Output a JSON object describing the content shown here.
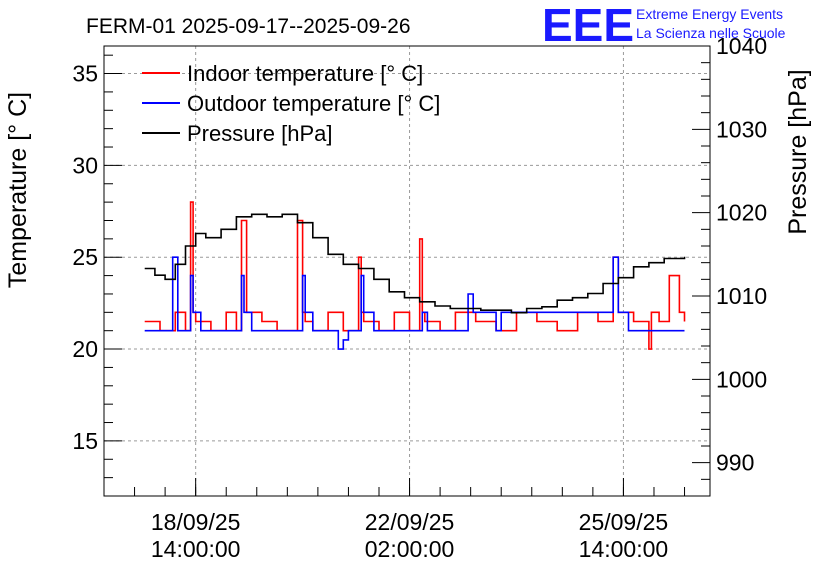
{
  "chart_data": {
    "type": "line",
    "title": "FERM-01 2025-09-17--2025-09-26",
    "ylabel_left": "Temperature [° C]",
    "ylabel_right": "Pressure [hPa]",
    "ylim_left": [
      12,
      36.5
    ],
    "ylim_right": [
      986,
      1040
    ],
    "xlim": [
      "2025-09-17 02:00",
      "2025-09-27 00:00"
    ],
    "y_ticks_left": [
      15,
      20,
      25,
      30,
      35
    ],
    "y_ticks_right": [
      990,
      1000,
      1010,
      1020,
      1030,
      1040
    ],
    "x_ticks": [
      {
        "at": "2025-09-18 14:00",
        "line1": "18/09/25",
        "line2": "14:00:00"
      },
      {
        "at": "2025-09-22 02:00",
        "line1": "22/09/25",
        "line2": "02:00:00"
      },
      {
        "at": "2025-09-25 14:00",
        "line1": "25/09/25",
        "line2": "14:00:00"
      }
    ],
    "grid": true,
    "legend_position": "top-left",
    "legend": [
      {
        "label": "Indoor temperature [° C]",
        "color": "#ff0000"
      },
      {
        "label": "Outdoor temperature [° C]",
        "color": "#0000ff"
      },
      {
        "label": "Pressure [hPa]",
        "color": "#000000"
      }
    ],
    "series": [
      {
        "name": "Indoor temperature [° C]",
        "color": "#ff0000",
        "axis": "left",
        "x": [
          "2025-09-17 18:00",
          "2025-09-18 00:00",
          "2025-09-18 06:00",
          "2025-09-18 10:00",
          "2025-09-18 12:00",
          "2025-09-18 13:00",
          "2025-09-18 14:00",
          "2025-09-18 20:00",
          "2025-09-19 02:00",
          "2025-09-19 06:00",
          "2025-09-19 08:00",
          "2025-09-19 10:00",
          "2025-09-19 16:00",
          "2025-09-19 22:00",
          "2025-09-20 06:00",
          "2025-09-20 08:00",
          "2025-09-20 09:00",
          "2025-09-20 12:00",
          "2025-09-20 18:00",
          "2025-09-21 00:00",
          "2025-09-21 06:00",
          "2025-09-21 07:00",
          "2025-09-21 08:00",
          "2025-09-21 14:00",
          "2025-09-21 20:00",
          "2025-09-22 02:00",
          "2025-09-22 06:00",
          "2025-09-22 07:00",
          "2025-09-22 08:00",
          "2025-09-22 14:00",
          "2025-09-22 20:00",
          "2025-09-23 04:00",
          "2025-09-23 12:00",
          "2025-09-23 20:00",
          "2025-09-24 04:00",
          "2025-09-24 12:00",
          "2025-09-24 20:00",
          "2025-09-25 04:00",
          "2025-09-25 10:00",
          "2025-09-25 12:00",
          "2025-09-25 18:00",
          "2025-09-26 00:00",
          "2025-09-26 01:00",
          "2025-09-26 04:00",
          "2025-09-26 08:00",
          "2025-09-26 12:00",
          "2025-09-26 14:00"
        ],
        "y": [
          21.5,
          21,
          22,
          21,
          28,
          22,
          21.5,
          21,
          22,
          21,
          27,
          22,
          21.5,
          21,
          27,
          22,
          21.5,
          21,
          22,
          21,
          25,
          22,
          21.5,
          21,
          22,
          21,
          26,
          22,
          21.5,
          21,
          22,
          21.5,
          21,
          22,
          21.5,
          21,
          22,
          21.5,
          25,
          22,
          21.5,
          20,
          22,
          21.5,
          24,
          22,
          21.5
        ]
      },
      {
        "name": "Outdoor temperature [° C]",
        "color": "#0000ff",
        "axis": "left",
        "x": [
          "2025-09-17 18:00",
          "2025-09-18 04:00",
          "2025-09-18 05:00",
          "2025-09-18 07:00",
          "2025-09-18 12:00",
          "2025-09-18 13:00",
          "2025-09-18 16:00",
          "2025-09-19 08:00",
          "2025-09-19 09:00",
          "2025-09-19 12:00",
          "2025-09-20 08:00",
          "2025-09-20 09:00",
          "2025-09-20 12:00",
          "2025-09-20 22:00",
          "2025-09-21 00:00",
          "2025-09-21 02:00",
          "2025-09-21 07:00",
          "2025-09-21 08:00",
          "2025-09-21 12:00",
          "2025-09-22 07:00",
          "2025-09-22 09:00",
          "2025-09-23 01:00",
          "2025-09-23 03:00",
          "2025-09-23 12:00",
          "2025-09-23 14:00",
          "2025-09-25 10:00",
          "2025-09-25 12:00",
          "2025-09-25 16:00",
          "2025-09-26 14:00"
        ],
        "y": [
          21,
          21,
          25,
          21,
          24,
          22,
          21,
          24,
          22,
          21,
          24,
          22,
          21,
          20,
          20.5,
          21,
          24,
          22,
          21,
          22,
          21,
          23,
          22,
          21,
          22,
          25,
          22,
          21,
          21
        ]
      },
      {
        "name": "Pressure [hPa]",
        "color": "#000000",
        "axis": "right",
        "x": [
          "2025-09-17 18:00",
          "2025-09-17 22:00",
          "2025-09-18 02:00",
          "2025-09-18 06:00",
          "2025-09-18 10:00",
          "2025-09-18 14:00",
          "2025-09-18 18:00",
          "2025-09-19 00:00",
          "2025-09-19 06:00",
          "2025-09-19 12:00",
          "2025-09-19 18:00",
          "2025-09-20 00:00",
          "2025-09-20 06:00",
          "2025-09-20 12:00",
          "2025-09-20 18:00",
          "2025-09-21 00:00",
          "2025-09-21 06:00",
          "2025-09-21 12:00",
          "2025-09-21 18:00",
          "2025-09-22 00:00",
          "2025-09-22 06:00",
          "2025-09-22 12:00",
          "2025-09-22 18:00",
          "2025-09-23 00:00",
          "2025-09-23 06:00",
          "2025-09-23 12:00",
          "2025-09-23 18:00",
          "2025-09-24 00:00",
          "2025-09-24 06:00",
          "2025-09-24 12:00",
          "2025-09-24 18:00",
          "2025-09-25 00:00",
          "2025-09-25 06:00",
          "2025-09-25 12:00",
          "2025-09-25 18:00",
          "2025-09-26 00:00",
          "2025-09-26 06:00",
          "2025-09-26 14:00"
        ],
        "y": [
          1013.3,
          1012.5,
          1012,
          1013.8,
          1016,
          1017.5,
          1017,
          1018,
          1019.5,
          1019.8,
          1019.5,
          1019.8,
          1018.8,
          1017,
          1015,
          1013.8,
          1013.3,
          1012,
          1010.5,
          1009.8,
          1009.3,
          1008.8,
          1008.5,
          1008.5,
          1008.3,
          1008.3,
          1008,
          1008.5,
          1008.7,
          1009.5,
          1009.8,
          1010.3,
          1011.5,
          1012.2,
          1013.5,
          1014,
          1014.5,
          1014.7
        ]
      }
    ]
  },
  "logo": {
    "mark": "EEE",
    "line1": "Extreme Energy Events",
    "line2": "La Scienza nelle Scuole"
  }
}
